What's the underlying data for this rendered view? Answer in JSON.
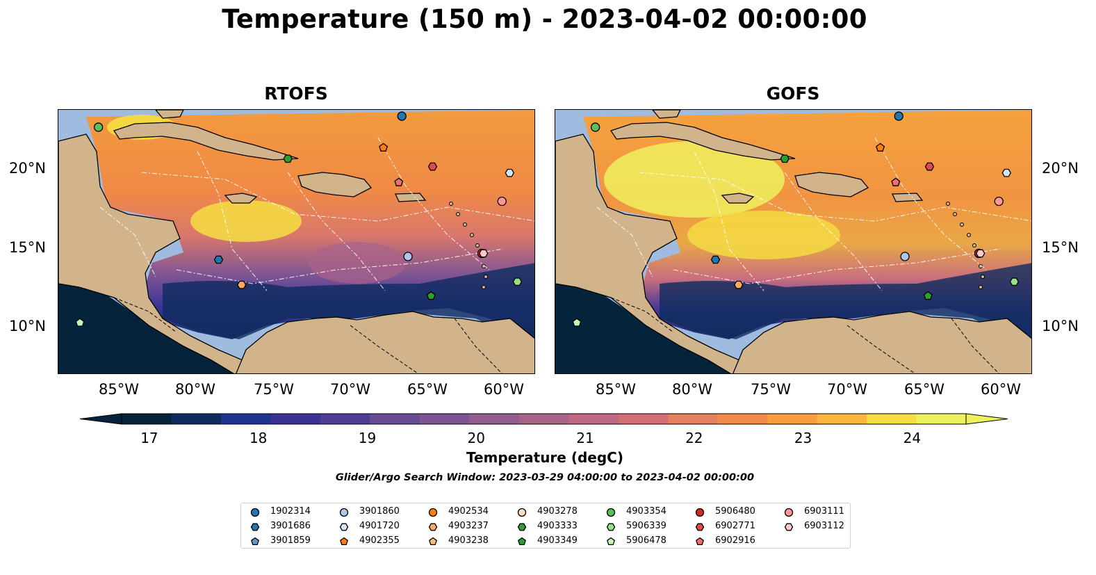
{
  "title": "Temperature (150 m) - 2023-04-02 00:00:00",
  "panels": [
    {
      "title": "RTOFS"
    },
    {
      "title": "GOFS"
    }
  ],
  "axes": {
    "lat_labels": [
      "20°N",
      "15°N",
      "10°N"
    ],
    "lon_labels": [
      "85°W",
      "80°W",
      "75°W",
      "70°W",
      "65°W",
      "60°W"
    ]
  },
  "colorbar": {
    "label": "Temperature (degC)",
    "ticks": [
      "17",
      "18",
      "19",
      "20",
      "21",
      "22",
      "23",
      "24"
    ],
    "min": 16.75,
    "max": 24.5,
    "colors": [
      "#05233a",
      "#0f2c5e",
      "#1e3591",
      "#3a3297",
      "#523d94",
      "#684c93",
      "#7e5592",
      "#925d8e",
      "#a96389",
      "#bf6884",
      "#d26f76",
      "#e47f5f",
      "#f48a48",
      "#fb9c3f",
      "#fcb63f",
      "#f5de42",
      "#eef05e"
    ],
    "extend_low_color": "#05233a",
    "extend_high_color": "#eef05e"
  },
  "search_window": "Glider/Argo Search Window: 2023-03-29 04:00:00 to 2023-04-02 00:00:00",
  "legend": [
    {
      "id": "1902314",
      "marker": "circle",
      "color": "#1f77b4"
    },
    {
      "id": "3901686",
      "marker": "hexagon",
      "color": "#1f77b4"
    },
    {
      "id": "3901859",
      "marker": "pentagon",
      "color": "#5f97d1"
    },
    {
      "id": "3901860",
      "marker": "circle",
      "color": "#aec7e8"
    },
    {
      "id": "4901720",
      "marker": "hexagon",
      "color": "#d3e6f7"
    },
    {
      "id": "4902355",
      "marker": "pentagon",
      "color": "#ff7f0e"
    },
    {
      "id": "4902534",
      "marker": "circle",
      "color": "#ff7f0e"
    },
    {
      "id": "4903237",
      "marker": "hexagon",
      "color": "#ffaa5e"
    },
    {
      "id": "4903238",
      "marker": "pentagon",
      "color": "#ffbb78"
    },
    {
      "id": "4903278",
      "marker": "circle",
      "color": "#ffdcbc"
    },
    {
      "id": "4903333",
      "marker": "hexagon",
      "color": "#2ca02c"
    },
    {
      "id": "4903349",
      "marker": "pentagon",
      "color": "#2ca02c"
    },
    {
      "id": "4903354",
      "marker": "circle",
      "color": "#5cbd5c"
    },
    {
      "id": "5906339",
      "marker": "hexagon",
      "color": "#98df8a"
    },
    {
      "id": "5906478",
      "marker": "pentagon",
      "color": "#c8f2b8"
    },
    {
      "id": "5906480",
      "marker": "circle",
      "color": "#d62728"
    },
    {
      "id": "6902771",
      "marker": "hexagon",
      "color": "#e04a4b"
    },
    {
      "id": "6902916",
      "marker": "pentagon",
      "color": "#f06d6d"
    },
    {
      "id": "6903111",
      "marker": "circle",
      "color": "#ff9896"
    },
    {
      "id": "6903112",
      "marker": "hexagon",
      "color": "#ffc9c7"
    }
  ],
  "floats": [
    {
      "id": "1902314",
      "lon": -66.7,
      "lat": 23.4
    },
    {
      "id": "4903354",
      "lon": -86.4,
      "lat": 22.7
    },
    {
      "id": "4902355",
      "lon": -67.9,
      "lat": 21.4
    },
    {
      "id": "4903333",
      "lon": -74.1,
      "lat": 20.7
    },
    {
      "id": "6902771",
      "lon": -64.7,
      "lat": 20.2
    },
    {
      "id": "4901720",
      "lon": -59.7,
      "lat": 19.8
    },
    {
      "id": "6902916",
      "lon": -66.9,
      "lat": 19.2
    },
    {
      "id": "6903111",
      "lon": -60.2,
      "lat": 18.0
    },
    {
      "id": "5906480",
      "lon": -61.5,
      "lat": 14.7
    },
    {
      "id": "3901860",
      "lon": -66.3,
      "lat": 14.5
    },
    {
      "id": "3901686",
      "lon": -78.6,
      "lat": 14.3
    },
    {
      "id": "6903112",
      "lon": -61.4,
      "lat": 14.7
    },
    {
      "id": "5906339",
      "lon": -59.2,
      "lat": 12.9
    },
    {
      "id": "4903237",
      "lon": -77.1,
      "lat": 12.7
    },
    {
      "id": "4903349",
      "lon": -64.8,
      "lat": 12.0
    },
    {
      "id": "5906478",
      "lon": -87.6,
      "lat": 10.3
    }
  ]
}
